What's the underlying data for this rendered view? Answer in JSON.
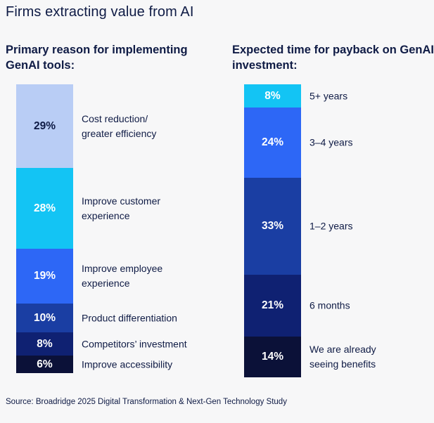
{
  "title": "Firms extracting value from AI",
  "source": "Source: Broadridge 2025 Digital Transformation & Next-Gen Technology Study",
  "chart_data": [
    {
      "type": "bar",
      "stacked": true,
      "title": "Primary reason for implementing GenAI tools:",
      "categories": [
        "Cost reduction/\ngreater efficiency",
        "Improve customer\nexperience",
        "Improve employee\nexperience",
        "Product differentiation",
        "Competitors’ investment",
        "Improve accessibility"
      ],
      "values": [
        29,
        28,
        19,
        10,
        8,
        6
      ],
      "value_labels": [
        "29%",
        "28%",
        "19%",
        "10%",
        "8%",
        "6%"
      ],
      "colors": [
        "#b9cdf5",
        "#13c4f4",
        "#2d67f6",
        "#1a3ea3",
        "#0f2172",
        "#0b1138"
      ],
      "text_colors": [
        "#0f1b45",
        "#ffffff",
        "#ffffff",
        "#ffffff",
        "#ffffff",
        "#ffffff"
      ]
    },
    {
      "type": "bar",
      "stacked": true,
      "title": "Expected time for payback on GenAI investment:",
      "categories": [
        "5+ years",
        "3–4 years",
        "1–2 years",
        "6 months",
        "We are already\nseeing benefits"
      ],
      "values": [
        8,
        24,
        33,
        21,
        14
      ],
      "value_labels": [
        "8%",
        "24%",
        "33%",
        "21%",
        "14%"
      ],
      "colors": [
        "#13c4f4",
        "#2d67f6",
        "#1a3ea3",
        "#0f2172",
        "#0b1138"
      ],
      "text_colors": [
        "#ffffff",
        "#ffffff",
        "#ffffff",
        "#ffffff",
        "#ffffff"
      ]
    }
  ]
}
